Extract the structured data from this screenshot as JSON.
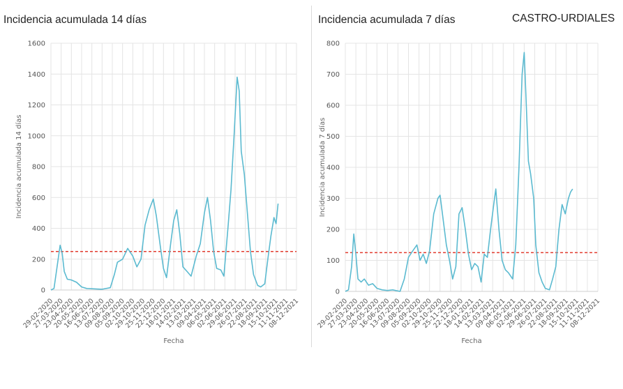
{
  "region_label": "CASTRO-URDIALES",
  "colors": {
    "line": "#5bbad0",
    "threshold": "#e23b2e",
    "grid": "#e4e4e4"
  },
  "chart_data": [
    {
      "type": "line",
      "title": "Incidencia acumulada 14 días",
      "xlabel": "Fecha",
      "ylabel": "Incidencia acumulada 14 días",
      "ylim": [
        0,
        1600
      ],
      "yticks": [
        0,
        200,
        400,
        600,
        800,
        1000,
        1200,
        1400,
        1600
      ],
      "x_tick_labels": [
        "29-02-2020",
        "27-03-2020",
        "23-04-2020",
        "20-05-2020",
        "16-06-2020",
        "13-07-2020",
        "09-08-2020",
        "05-09-2020",
        "02-10-2020",
        "29-10-2020",
        "25-11-2020",
        "22-12-2020",
        "18-01-2021",
        "14-02-2021",
        "13-03-2021",
        "09-04-2021",
        "06-05-2021",
        "02-06-2021",
        "29-06-2021",
        "26-07-2021",
        "22-08-2021",
        "18-09-2021",
        "15-10-2021",
        "11-11-2021",
        "08-12-2021"
      ],
      "threshold": 250,
      "grid": true,
      "series": [
        {
          "color": "#5bbad0",
          "points": [
            [
              0,
              0
            ],
            [
              0.3,
              10
            ],
            [
              0.6,
              150
            ],
            [
              0.9,
              290
            ],
            [
              1.1,
              240
            ],
            [
              1.3,
              120
            ],
            [
              1.6,
              70
            ],
            [
              2.0,
              65
            ],
            [
              2.5,
              50
            ],
            [
              3.0,
              20
            ],
            [
              3.5,
              10
            ],
            [
              4.0,
              8
            ],
            [
              5.0,
              5
            ],
            [
              5.8,
              15
            ],
            [
              6.2,
              100
            ],
            [
              6.5,
              180
            ],
            [
              7.0,
              200
            ],
            [
              7.5,
              270
            ],
            [
              8.0,
              220
            ],
            [
              8.4,
              150
            ],
            [
              8.8,
              200
            ],
            [
              9.2,
              420
            ],
            [
              9.6,
              520
            ],
            [
              10.0,
              590
            ],
            [
              10.3,
              480
            ],
            [
              10.7,
              280
            ],
            [
              11.0,
              140
            ],
            [
              11.3,
              80
            ],
            [
              11.7,
              300
            ],
            [
              12.0,
              450
            ],
            [
              12.3,
              520
            ],
            [
              12.6,
              360
            ],
            [
              12.9,
              150
            ],
            [
              13.3,
              120
            ],
            [
              13.7,
              90
            ],
            [
              14.2,
              220
            ],
            [
              14.6,
              300
            ],
            [
              15.0,
              500
            ],
            [
              15.3,
              600
            ],
            [
              15.6,
              450
            ],
            [
              15.9,
              250
            ],
            [
              16.2,
              140
            ],
            [
              16.6,
              130
            ],
            [
              16.9,
              90
            ],
            [
              17.3,
              400
            ],
            [
              17.6,
              650
            ],
            [
              17.9,
              1000
            ],
            [
              18.2,
              1380
            ],
            [
              18.4,
              1290
            ],
            [
              18.6,
              900
            ],
            [
              18.9,
              750
            ],
            [
              19.2,
              500
            ],
            [
              19.5,
              250
            ],
            [
              19.8,
              100
            ],
            [
              20.2,
              30
            ],
            [
              20.5,
              20
            ],
            [
              20.9,
              40
            ],
            [
              21.2,
              200
            ],
            [
              21.5,
              350
            ],
            [
              21.8,
              470
            ],
            [
              22.0,
              430
            ],
            [
              22.2,
              560
            ]
          ]
        }
      ]
    },
    {
      "type": "line",
      "title": "Incidencia acumulada 7 días",
      "xlabel": "Fecha",
      "ylabel": "Incidencia acumulada 7 días",
      "ylim": [
        0,
        800
      ],
      "yticks": [
        0,
        100,
        200,
        300,
        400,
        500,
        600,
        700,
        800
      ],
      "x_tick_labels": [
        "29-02-2020",
        "27-03-2020",
        "23-04-2020",
        "20-05-2020",
        "16-06-2020",
        "13-07-2020",
        "09-08-2020",
        "05-09-2020",
        "02-10-2020",
        "29-10-2020",
        "25-11-2020",
        "22-12-2020",
        "18-01-2021",
        "14-02-2021",
        "13-03-2021",
        "09-04-2021",
        "06-05-2021",
        "02-06-2021",
        "29-06-2021",
        "26-07-2021",
        "22-08-2021",
        "18-09-2021",
        "15-10-2021",
        "11-11-2021",
        "08-12-2021"
      ],
      "threshold": 125,
      "grid": true,
      "series": [
        {
          "color": "#5bbad0",
          "points": [
            [
              0,
              0
            ],
            [
              0.3,
              5
            ],
            [
              0.6,
              80
            ],
            [
              0.8,
              185
            ],
            [
              1.0,
              120
            ],
            [
              1.2,
              40
            ],
            [
              1.5,
              30
            ],
            [
              1.8,
              40
            ],
            [
              2.2,
              20
            ],
            [
              2.6,
              25
            ],
            [
              3.0,
              10
            ],
            [
              3.5,
              5
            ],
            [
              4.0,
              3
            ],
            [
              4.5,
              5
            ],
            [
              5.2,
              0
            ],
            [
              5.6,
              40
            ],
            [
              6.0,
              110
            ],
            [
              6.4,
              130
            ],
            [
              6.8,
              150
            ],
            [
              7.1,
              100
            ],
            [
              7.4,
              120
            ],
            [
              7.7,
              90
            ],
            [
              8.0,
              130
            ],
            [
              8.4,
              250
            ],
            [
              8.8,
              300
            ],
            [
              9.0,
              310
            ],
            [
              9.3,
              230
            ],
            [
              9.6,
              150
            ],
            [
              9.9,
              100
            ],
            [
              10.2,
              40
            ],
            [
              10.5,
              80
            ],
            [
              10.8,
              250
            ],
            [
              11.1,
              270
            ],
            [
              11.4,
              200
            ],
            [
              11.7,
              120
            ],
            [
              12.0,
              70
            ],
            [
              12.3,
              90
            ],
            [
              12.6,
              80
            ],
            [
              12.9,
              30
            ],
            [
              13.2,
              120
            ],
            [
              13.5,
              110
            ],
            [
              13.8,
              200
            ],
            [
              14.1,
              280
            ],
            [
              14.3,
              330
            ],
            [
              14.6,
              200
            ],
            [
              14.9,
              100
            ],
            [
              15.2,
              70
            ],
            [
              15.5,
              60
            ],
            [
              15.9,
              40
            ],
            [
              16.2,
              150
            ],
            [
              16.5,
              400
            ],
            [
              16.8,
              700
            ],
            [
              17.0,
              770
            ],
            [
              17.2,
              600
            ],
            [
              17.4,
              420
            ],
            [
              17.6,
              380
            ],
            [
              17.9,
              300
            ],
            [
              18.1,
              150
            ],
            [
              18.4,
              60
            ],
            [
              18.7,
              30
            ],
            [
              19.0,
              10
            ],
            [
              19.4,
              5
            ],
            [
              19.7,
              40
            ],
            [
              20.0,
              80
            ],
            [
              20.3,
              200
            ],
            [
              20.6,
              280
            ],
            [
              20.9,
              250
            ],
            [
              21.2,
              300
            ],
            [
              21.4,
              320
            ],
            [
              21.6,
              330
            ]
          ]
        }
      ]
    }
  ]
}
